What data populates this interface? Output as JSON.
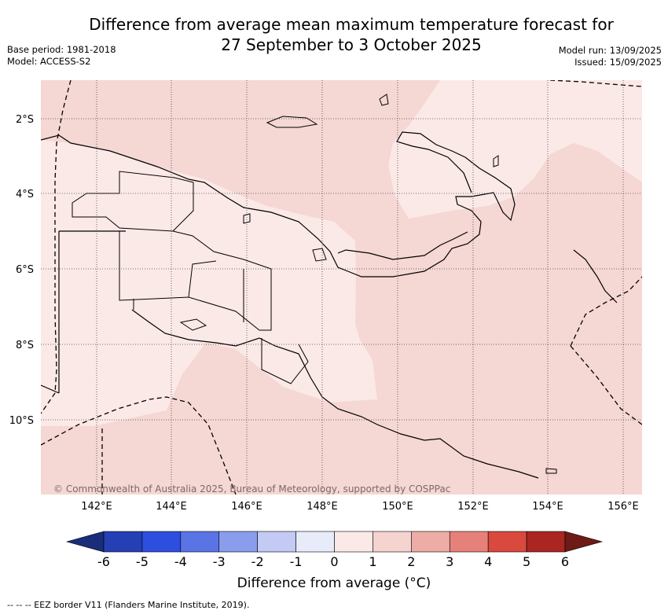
{
  "title_line1": "Difference from average mean maximum temperature forecast for",
  "title_line2": "27 September to 3 October 2025",
  "base_period": "Base period: 1981-2018",
  "model": "Model: ACCESS-S2",
  "model_run": "Model run: 13/09/2025",
  "issued": "Issued: 15/09/2025",
  "lat_labels": [
    "2°S",
    "4°S",
    "6°S",
    "8°S",
    "10°S"
  ],
  "lon_labels": [
    "142°E",
    "144°E",
    "146°E",
    "148°E",
    "150°E",
    "152°E",
    "154°E",
    "156°E"
  ],
  "copyright": "© Commonwealth of Australia 2025, Bureau of Meteorology, supported by COSPPac",
  "colorbar": {
    "ticks": [
      "-6",
      "-5",
      "-4",
      "-3",
      "-2",
      "-1",
      "0",
      "1",
      "2",
      "3",
      "4",
      "5",
      "6"
    ],
    "colors": [
      "#1a2d7a",
      "#2540b5",
      "#2e4ee0",
      "#5a74e6",
      "#8a9ded",
      "#c3caf4",
      "#e8ebfa",
      "#fbe9e7",
      "#f5d3cf",
      "#eeaca6",
      "#e6817a",
      "#d9493d",
      "#aa2621",
      "#6e1a17"
    ],
    "title": "Difference from average (°C)"
  },
  "map_colors": {
    "light": "#fbe9e7",
    "medium": "#f5d7d3",
    "land_outline": "#000000"
  },
  "footnote": "-- -- -- EEZ border V11 (Flanders Marine Institute, 2019)."
}
